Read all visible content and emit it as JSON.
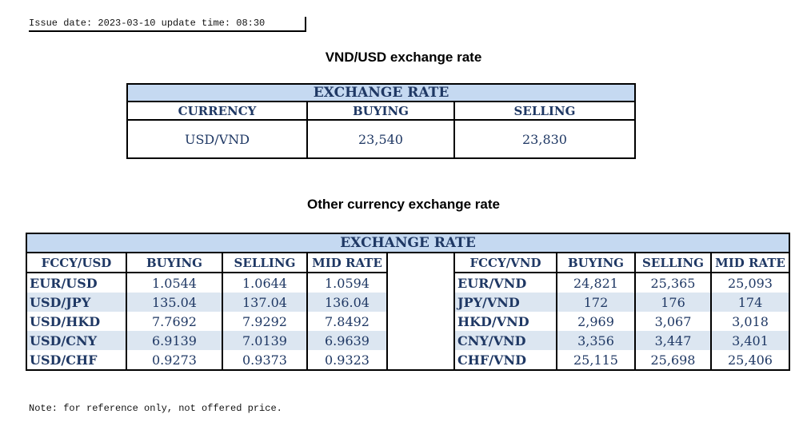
{
  "issue": "Issue date: 2023-03-10 update time: 08:30",
  "title1": "VND/USD exchange rate",
  "usd": {
    "header": "EXCHANGE RATE",
    "cols": [
      "CURRENCY",
      "BUYING",
      "SELLING"
    ],
    "row": [
      "USD/VND",
      "23,540",
      "23,830"
    ]
  },
  "title2": "Other currency exchange rate",
  "other": {
    "header": "EXCHANGE  RATE",
    "left_cols": [
      "FCCY/USD",
      "BUYING",
      "SELLING",
      "MID RATE"
    ],
    "right_cols": [
      "FCCY/VND",
      "BUYING",
      "SELLING",
      "MID RATE"
    ],
    "rows": [
      {
        "l": [
          "EUR/USD",
          "1.0544",
          "1.0644",
          "1.0594"
        ],
        "r": [
          "EUR/VND",
          "24,821",
          "25,365",
          "25,093"
        ]
      },
      {
        "l": [
          "USD/JPY",
          "135.04",
          "137.04",
          "136.04"
        ],
        "r": [
          "JPY/VND",
          "172",
          "176",
          "174"
        ]
      },
      {
        "l": [
          "USD/HKD",
          "7.7692",
          "7.9292",
          "7.8492"
        ],
        "r": [
          "HKD/VND",
          "2,969",
          "3,067",
          "3,018"
        ]
      },
      {
        "l": [
          "USD/CNY",
          "6.9139",
          "7.0139",
          "6.9639"
        ],
        "r": [
          "CNY/VND",
          "3,356",
          "3,447",
          "3,401"
        ]
      },
      {
        "l": [
          "USD/CHF",
          "0.9273",
          "0.9373",
          "0.9323"
        ],
        "r": [
          "CHF/VND",
          "25,115",
          "25,698",
          "25,406"
        ]
      }
    ]
  },
  "note": "Note: for reference only, not offered price."
}
